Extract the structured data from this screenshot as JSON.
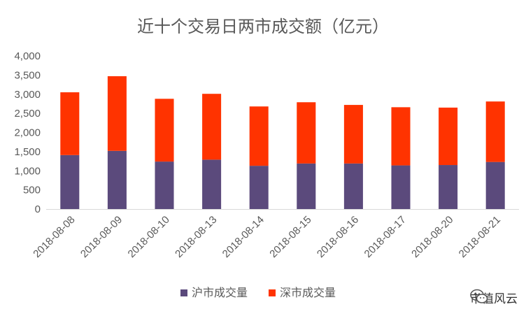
{
  "chart_data": {
    "type": "bar",
    "stacked": true,
    "title": "近十个交易日两市成交额（亿元）",
    "categories": [
      "2018-08-08",
      "2018-08-09",
      "2018-08-10",
      "2018-08-13",
      "2018-08-14",
      "2018-08-15",
      "2018-08-16",
      "2018-08-17",
      "2018-08-20",
      "2018-08-21"
    ],
    "series": [
      {
        "name": "沪市成交量",
        "color": "#5b4a7c",
        "values": [
          1410,
          1520,
          1240,
          1290,
          1130,
          1190,
          1190,
          1140,
          1150,
          1230
        ]
      },
      {
        "name": "深市成交量",
        "color": "#ff3300",
        "values": [
          1640,
          1950,
          1640,
          1720,
          1550,
          1600,
          1530,
          1520,
          1500,
          1580
        ]
      }
    ],
    "ylim": [
      0,
      4000
    ],
    "yticks": [
      "0",
      "500",
      "1,000",
      "1,500",
      "2,000",
      "2,500",
      "3,000",
      "3,500",
      "4,000"
    ],
    "ytick_values": [
      0,
      500,
      1000,
      1500,
      2000,
      2500,
      3000,
      3500,
      4000
    ],
    "grid": false,
    "legend_position": "bottom"
  },
  "watermark": {
    "text": "市值风云",
    "icon": "wechat-icon"
  }
}
